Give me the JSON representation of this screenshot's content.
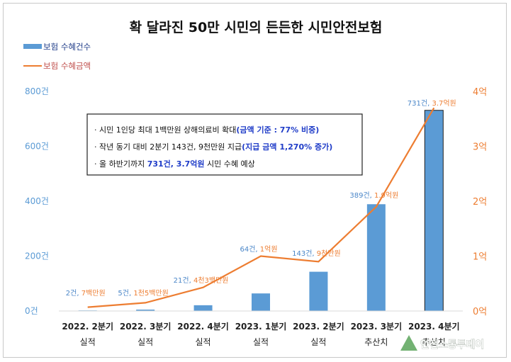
{
  "chart_data": {
    "type": "bar+line",
    "title": "확 달라진 50만 시민의 든든한 시민안전보험",
    "legend": {
      "placement": "top-left",
      "entries": [
        "보험 수혜건수",
        "보험 수혜금액"
      ]
    },
    "categories": [
      [
        "2022. 2분기",
        "실적"
      ],
      [
        "2022. 3분기",
        "실적"
      ],
      [
        "2022. 4분기",
        "실적"
      ],
      [
        "2023. 1분기",
        "실적"
      ],
      [
        "2023. 2분기",
        "실적"
      ],
      [
        "2023. 3분기",
        "추산치"
      ],
      [
        "2023. 4분기",
        "추산치"
      ]
    ],
    "series": [
      {
        "name": "보험 수혜건수",
        "type": "bar",
        "axis": "left",
        "color": "#5b9bd5",
        "values": [
          2,
          5,
          21,
          64,
          143,
          389,
          731
        ]
      },
      {
        "name": "보험 수혜금액",
        "type": "line",
        "axis": "right",
        "color": "#ed7d31",
        "values": [
          0.07,
          0.15,
          0.43,
          1.0,
          0.9,
          1.9,
          3.7
        ]
      }
    ],
    "data_labels": {
      "count": [
        "2건,",
        "5건,",
        "21건,",
        "64건,",
        "143건,",
        "389건,",
        "731건,"
      ],
      "amount": [
        "7백만원",
        "1천5백만원",
        "4천3백만원",
        "1억원",
        "9천만원",
        "1.9억원",
        "3.7억원"
      ]
    },
    "y_left": {
      "ylim": [
        0,
        800
      ],
      "ticks": [
        "0건",
        "200건",
        "400건",
        "600건",
        "800건"
      ],
      "tick_values": [
        0,
        200,
        400,
        600,
        800
      ]
    },
    "y_right": {
      "ylim": [
        0,
        4
      ],
      "ticks": [
        "0억",
        "1억",
        "2억",
        "3억",
        "4억"
      ],
      "tick_values": [
        0,
        1,
        2,
        3,
        4
      ]
    },
    "grid": false,
    "annotation_box": [
      [
        {
          "t": "· 시민 1인당 최대 1백만원 상해의료비 확대"
        },
        {
          "t": "(금액 기준 : 77% 비중)",
          "em": true
        }
      ],
      [
        {
          "t": "· 작년 동기 대비 2분기 143건, 9천만원 지급"
        },
        {
          "t": "(지급 금액 1,270% 증가)",
          "em": true
        }
      ],
      [
        {
          "t": "· 올 하반기까지 "
        },
        {
          "t": "731건, 3.7억원",
          "em": true
        },
        {
          "t": " 시민 수혜 예상"
        }
      ]
    ]
  },
  "watermark": "안전소통투데이"
}
